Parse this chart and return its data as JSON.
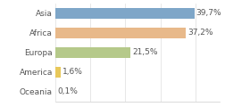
{
  "categories": [
    "Asia",
    "Africa",
    "Europa",
    "America",
    "Oceania"
  ],
  "values": [
    39.7,
    37.2,
    21.5,
    1.6,
    0.1
  ],
  "labels": [
    "39,7%",
    "37,2%",
    "21,5%",
    "1,6%",
    "0,1%"
  ],
  "bar_colors": [
    "#7ea6c8",
    "#e8b98a",
    "#b5c98a",
    "#e8c85a",
    "#cccccc"
  ],
  "xlim": [
    0,
    47
  ],
  "background_color": "#ffffff",
  "label_fontsize": 6.5,
  "value_fontsize": 6.5,
  "bar_height": 0.55,
  "grid_ticks": [
    0,
    10,
    20,
    30,
    40
  ],
  "grid_color": "#dddddd",
  "text_color": "#555555"
}
